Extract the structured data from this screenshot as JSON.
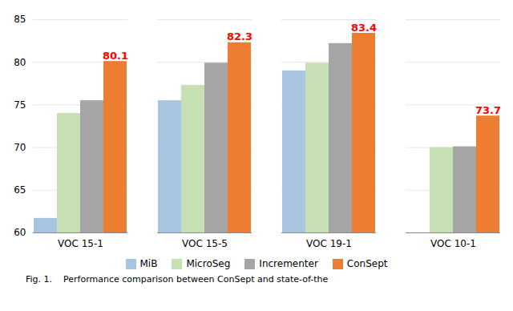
{
  "chart_data": {
    "type": "bar",
    "categories": [
      "VOC 15-1",
      "VOC 15-5",
      "VOC 19-1",
      "VOC 10-1"
    ],
    "series": [
      {
        "name": "MiB",
        "color": "#a8c4e0",
        "values": [
          61.7,
          75.5,
          79.0,
          60.0
        ]
      },
      {
        "name": "MicroSeg",
        "color": "#c6e0b4",
        "values": [
          74.0,
          77.3,
          79.9,
          70.0
        ]
      },
      {
        "name": "Incrementer",
        "color": "#a5a5a5",
        "values": [
          75.5,
          79.9,
          82.2,
          70.1
        ]
      },
      {
        "name": "ConSept",
        "color": "#ed7d31",
        "values": [
          80.1,
          82.3,
          83.4,
          73.7
        ],
        "data_labels": true
      }
    ],
    "ylim": [
      60,
      85
    ],
    "yticks": [
      60,
      65,
      70,
      75,
      80,
      85
    ],
    "grid": true,
    "legend": "bottom",
    "caption": "Fig. 1.    Performance comparison between ConSept and state-of-the"
  }
}
